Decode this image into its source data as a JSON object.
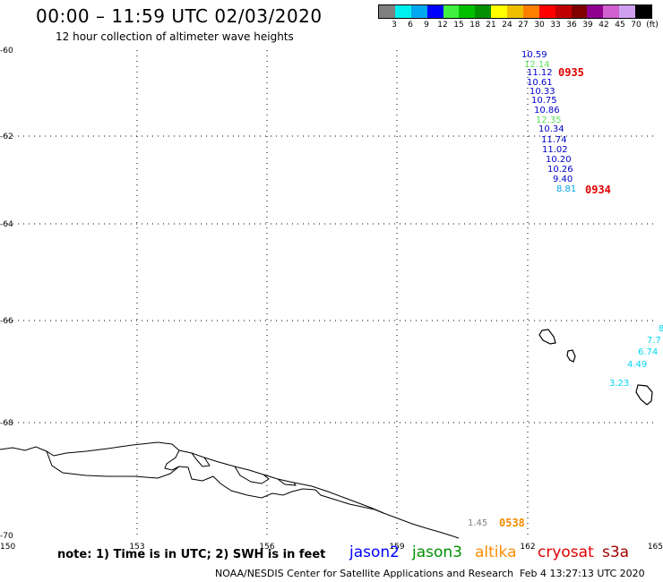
{
  "header": {
    "title": "00:00 – 11:59 UTC 02/03/2020",
    "subtitle": "12 hour collection of altimeter wave heights"
  },
  "color_scale": {
    "colors": [
      "#808080",
      "#00f0f0",
      "#00a8f0",
      "#0000ff",
      "#40f040",
      "#00c000",
      "#009000",
      "#ffff00",
      "#f0c000",
      "#ff8000",
      "#ff0000",
      "#c00000",
      "#800000",
      "#900090",
      "#d060d0",
      "#d0a0f0",
      "#000000"
    ],
    "labels": [
      "3",
      "6",
      "9",
      "12",
      "15",
      "18",
      "21",
      "24",
      "27",
      "30",
      "33",
      "36",
      "39",
      "42",
      "45",
      "70",
      "(ft)"
    ]
  },
  "map": {
    "lon_range": [
      150,
      165
    ],
    "lat_range": [
      -70,
      -60
    ],
    "x_labels": [
      "150",
      "153",
      "156",
      "159",
      "162",
      "165"
    ],
    "y_labels": [
      "-60",
      "-62",
      "-64",
      "-66",
      "-68",
      "-70"
    ]
  },
  "observations": [
    {
      "value": "10.59",
      "color": "#0000c8"
    },
    {
      "value": "12.14",
      "color": "#60e060"
    },
    {
      "value": "11.12",
      "color": "#0000c8"
    },
    {
      "value": "10.61",
      "color": "#0000c8"
    },
    {
      "value": "10.33",
      "color": "#0000c8"
    },
    {
      "value": "10.75",
      "color": "#0000c8"
    },
    {
      "value": "10.86",
      "color": "#0000c8"
    },
    {
      "value": "12.35",
      "color": "#60e060"
    },
    {
      "value": "10.34",
      "color": "#0000c8"
    },
    {
      "value": "11.74",
      "color": "#0000c8"
    },
    {
      "value": "11.02",
      "color": "#0000c8"
    },
    {
      "value": "10.20",
      "color": "#0000c8"
    },
    {
      "value": "10.26",
      "color": "#0000c8"
    },
    {
      "value": "9.40",
      "color": "#0000c8"
    },
    {
      "value": "8.81",
      "color": "#00a8f0"
    },
    {
      "value": "8",
      "color": "#00d8f0"
    },
    {
      "value": "7.7",
      "color": "#00d8f0"
    },
    {
      "value": "6.74",
      "color": "#00d8f0"
    },
    {
      "value": "4.49",
      "color": "#00d8f0"
    },
    {
      "value": "3.23",
      "color": "#00d8f0"
    },
    {
      "value": "1.45",
      "color": "#808080"
    }
  ],
  "time_labels": [
    {
      "text": "0935",
      "color": "#e00000"
    },
    {
      "text": "0934",
      "color": "#e00000"
    },
    {
      "text": "0538",
      "color": "#f08c00"
    }
  ],
  "footer": {
    "note": "note: 1) Time is in UTC; 2) SWH is in feet",
    "legend": [
      {
        "name": "jason2",
        "color": "#0000ff"
      },
      {
        "name": "jason3",
        "color": "#009000"
      },
      {
        "name": "altika",
        "color": "#ff8c00"
      },
      {
        "name": "cryosat",
        "color": "#e00000"
      },
      {
        "name": "s3a",
        "color": "#a00000"
      }
    ],
    "credit": "NOAA/NESDIS Center for Satellite Applications and Research",
    "timestamp": "Feb  4 13:27:13 UTC 2020"
  }
}
